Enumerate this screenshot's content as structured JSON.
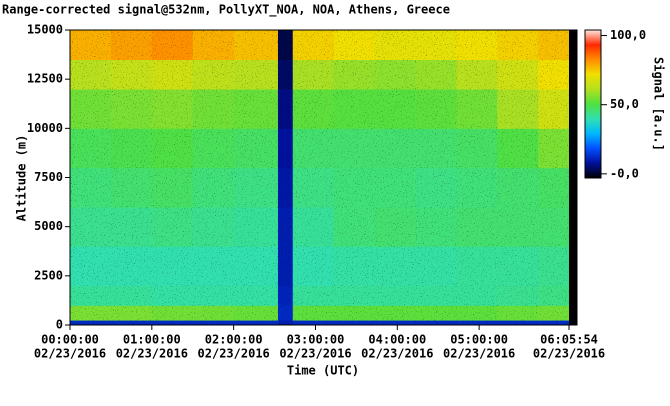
{
  "chart_data": {
    "type": "heatmap",
    "title": "Range-corrected signal@532nm, PollyXT_NOA, NOA, Athens, Greece",
    "x_label": "Time (UTC)",
    "y_label": "Altitude (m)",
    "colorbar_label": "Signal [a.u.]",
    "xlim": [
      0,
      21954
    ],
    "xticks": [
      {
        "value": 0,
        "label": "00:00:00",
        "date": "02/23/2016"
      },
      {
        "value": 3600,
        "label": "01:00:00",
        "date": "02/23/2016"
      },
      {
        "value": 7200,
        "label": "02:00:00",
        "date": "02/23/2016"
      },
      {
        "value": 10800,
        "label": "03:00:00",
        "date": "02/23/2016"
      },
      {
        "value": 14400,
        "label": "04:00:00",
        "date": "02/23/2016"
      },
      {
        "value": 18000,
        "label": "05:00:00",
        "date": "02/23/2016"
      },
      {
        "value": 21954,
        "label": "06:05:54",
        "date": "02/23/2016"
      }
    ],
    "ylim": [
      0,
      15000
    ],
    "yticks": [
      0,
      2500,
      5000,
      7500,
      10000,
      12500,
      15000
    ],
    "xbins": [
      0,
      1800,
      3600,
      5400,
      7200,
      9150,
      9800,
      11600,
      13400,
      15200,
      17000,
      18800,
      20600,
      21954
    ],
    "ybins": [
      0,
      250,
      1000,
      2000,
      4000,
      6000,
      8000,
      10000,
      12000,
      13500,
      15000
    ],
    "z": [
      [
        12,
        12,
        12,
        12,
        12,
        10,
        12,
        12,
        12,
        12,
        12,
        12,
        12
      ],
      [
        55,
        55,
        54,
        54,
        53,
        12,
        52,
        52,
        52,
        52,
        52,
        53,
        54
      ],
      [
        42,
        42,
        41,
        41,
        41,
        11,
        42,
        42,
        42,
        42,
        42,
        43,
        44
      ],
      [
        40,
        40,
        40,
        40,
        40,
        10,
        40,
        41,
        41,
        41,
        42,
        42,
        43
      ],
      [
        43,
        43,
        44,
        43,
        42,
        10,
        42,
        45,
        46,
        45,
        46,
        46,
        46
      ],
      [
        45,
        46,
        47,
        45,
        44,
        9,
        44,
        45,
        45,
        44,
        45,
        46,
        47
      ],
      [
        48,
        49,
        50,
        48,
        47,
        8,
        46,
        46,
        46,
        46,
        47,
        50,
        55
      ],
      [
        54,
        55,
        56,
        54,
        53,
        6,
        52,
        51,
        51,
        52,
        54,
        60,
        66
      ],
      [
        62,
        64,
        66,
        63,
        62,
        4,
        60,
        58,
        57,
        58,
        62,
        66,
        72
      ],
      [
        78,
        80,
        82,
        78,
        76,
        2,
        74,
        72,
        70,
        70,
        72,
        74,
        76
      ]
    ],
    "clim": [
      -3,
      104
    ],
    "cticks": [
      {
        "value": 0,
        "label": "-0,0"
      },
      {
        "value": 50,
        "label": "50,0"
      },
      {
        "value": 100,
        "label": "100,0"
      }
    ],
    "colormap": [
      "#000000",
      "#00109a",
      "#0050ff",
      "#00b8ff",
      "#30e0b0",
      "#50e040",
      "#b4e020",
      "#f0e000",
      "#ff8c00",
      "#ff2a00",
      "#ffe8e0"
    ]
  }
}
